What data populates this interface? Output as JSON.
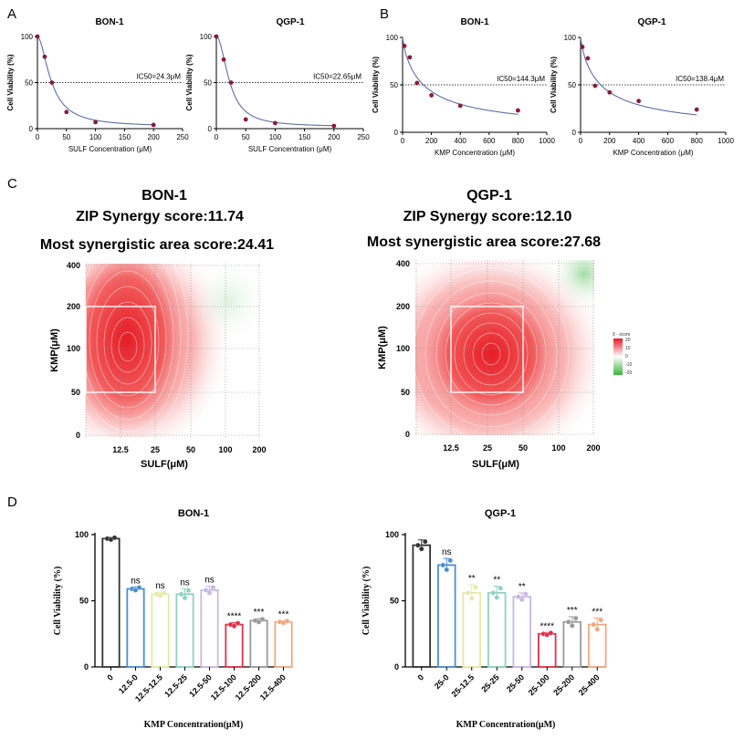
{
  "panel_labels": {
    "A": "A",
    "B": "B",
    "C": "C",
    "D": "D"
  },
  "colors": {
    "curve": "#5b6fa8",
    "point": "#8b1a3a",
    "heat": "#e8202a",
    "cool": "#3cb33c"
  },
  "chart_data": [
    {
      "type": "scatter",
      "panel": "A",
      "title": "BON-1",
      "xlabel": "SULF Concentration (μM)",
      "ylabel": "Cell Viability (%)",
      "xlim": [
        0,
        250
      ],
      "ylim": [
        0,
        100
      ],
      "xticks": [
        "0",
        "50",
        "100",
        "150",
        "200",
        "250"
      ],
      "yticks": [
        "0",
        "50",
        "100"
      ],
      "x": [
        0,
        12.5,
        25,
        50,
        100,
        200
      ],
      "y": [
        100,
        78,
        50,
        18,
        7,
        4
      ],
      "ic50_value": 24.3,
      "ic50_label": "IC50=24.3μM",
      "ic50_line_y": 50,
      "fit": {
        "model": "hill",
        "ic50": 24.3,
        "hill": 1.8,
        "bottom": 2
      },
      "series": [
        {
          "name": "fit",
          "values": []
        }
      ]
    },
    {
      "type": "scatter",
      "panel": "A",
      "title": "QGP-1",
      "xlabel": "SULF Concentration (μM)",
      "ylabel": "Cell Viability (%)",
      "xlim": [
        0,
        250
      ],
      "ylim": [
        0,
        100
      ],
      "xticks": [
        "0",
        "50",
        "100",
        "150",
        "200",
        "250"
      ],
      "yticks": [
        "0",
        "50",
        "100"
      ],
      "x": [
        0,
        12.5,
        25,
        50,
        100,
        200
      ],
      "y": [
        100,
        75,
        50,
        10,
        6,
        3
      ],
      "ic50_value": 22.65,
      "ic50_label": "IC50=22.65μM",
      "ic50_line_y": 50,
      "fit": {
        "model": "hill",
        "ic50": 22.65,
        "hill": 2.0,
        "bottom": 2
      },
      "series": [
        {
          "name": "fit",
          "values": []
        }
      ]
    },
    {
      "type": "scatter",
      "panel": "B",
      "title": "BON-1",
      "xlabel": "KMP Concentration (μM)",
      "ylabel": "Cell Viability (%)",
      "xlim": [
        0,
        1000
      ],
      "ylim": [
        0,
        100
      ],
      "xticks": [
        "0",
        "200",
        "400",
        "600",
        "800",
        "1000"
      ],
      "yticks": [
        "0",
        "50",
        "100"
      ],
      "x": [
        12.5,
        50,
        100,
        200,
        400,
        800
      ],
      "y": [
        91,
        79,
        52,
        39,
        28,
        23
      ],
      "ic50_value": 144.3,
      "ic50_label": "IC50=144.3μM",
      "ic50_line_y": 50,
      "fit": {
        "model": "hill",
        "ic50": 144.3,
        "hill": 0.85,
        "bottom": 0
      },
      "series": [
        {
          "name": "fit",
          "values": []
        }
      ]
    },
    {
      "type": "scatter",
      "panel": "B",
      "title": "QGP-1",
      "xlabel": "KMP Concentration (μM)",
      "ylabel": "Cell Viability (%)",
      "xlim": [
        0,
        1000
      ],
      "ylim": [
        0,
        100
      ],
      "xticks": [
        "0",
        "200",
        "400",
        "600",
        "800",
        "1000"
      ],
      "yticks": [
        "0",
        "50",
        "100"
      ],
      "x": [
        12.5,
        50,
        100,
        200,
        400,
        800
      ],
      "y": [
        90,
        78,
        49,
        42,
        33,
        24
      ],
      "ic50_value": 138.4,
      "ic50_label": "IC50=138.4μM",
      "ic50_line_y": 50,
      "fit": {
        "model": "hill",
        "ic50": 138.4,
        "hill": 0.85,
        "bottom": 0
      },
      "series": [
        {
          "name": "fit",
          "values": []
        }
      ]
    },
    {
      "type": "heatmap",
      "panel": "C",
      "title": "BON-1",
      "subtitle": "ZIP Synergy score:11.74",
      "annotation": "Most synergistic area score:24.41",
      "xlabel": "SULF(μM)",
      "ylabel": "KMP(μM)",
      "xticks": [
        "12.5",
        "25",
        "50",
        "100",
        "200"
      ],
      "yticks": [
        "0",
        "50",
        "100",
        "200",
        "400"
      ],
      "synergy_peak": {
        "sulf": "12.5",
        "kmp": "100"
      },
      "box": {
        "sulf": [
          "12.5",
          "25"
        ],
        "kmp": [
          "50",
          "200"
        ]
      }
    },
    {
      "type": "heatmap",
      "panel": "C",
      "title": "QGP-1",
      "subtitle": "ZIP Synergy score:12.10",
      "annotation": "Most synergistic area score:27.68",
      "xlabel": "SULF(μM)",
      "ylabel": "KMP(μM)",
      "xticks": [
        "12.5",
        "25",
        "50",
        "100",
        "200"
      ],
      "yticks": [
        "0",
        "50",
        "100",
        "200",
        "400"
      ],
      "synergy_peak": {
        "sulf": "25",
        "kmp": "100"
      },
      "box": {
        "sulf": [
          "12.5",
          "50"
        ],
        "kmp": [
          "50",
          "200"
        ]
      },
      "legend": {
        "title": "δ - score",
        "ticks": [
          "20",
          "10",
          "0",
          "-10",
          "-20"
        ]
      }
    },
    {
      "type": "bar",
      "panel": "D",
      "title": "BON-1",
      "xlabel": "KMP Concentration(μM)",
      "ylabel": "Cell Viability (%)",
      "ylim": [
        0,
        100
      ],
      "yticks": [
        "0",
        "50",
        "100"
      ],
      "categories": [
        "0",
        "12.5-0",
        "12.5-12.5",
        "12.5-25",
        "12.5-50",
        "12.5-100",
        "12.5-200",
        "12.5-400"
      ],
      "values": [
        97,
        59,
        55,
        55,
        58,
        32,
        35,
        34
      ],
      "errors": [
        1,
        1.5,
        1.5,
        4,
        3,
        1.5,
        1.5,
        1
      ],
      "significance": [
        "",
        "ns",
        "ns",
        "ns",
        "ns",
        "****",
        "***",
        "***"
      ],
      "bar_colors": [
        "#333333",
        "#4a8fd0",
        "#e3eaa6",
        "#8fd1c0",
        "#c8b8e0",
        "#e0304a",
        "#9a9a9a",
        "#f0a880"
      ]
    },
    {
      "type": "bar",
      "panel": "D",
      "title": "QGP-1",
      "xlabel": "KMP Concentration(μM)",
      "ylabel": "Cell Viability (%)",
      "ylim": [
        0,
        100
      ],
      "yticks": [
        "0",
        "50",
        "100"
      ],
      "categories": [
        "0",
        "25-0",
        "25-12.5",
        "25-25",
        "25-50",
        "25-100",
        "25-200",
        "25-400"
      ],
      "values": [
        92,
        77,
        56,
        56,
        53,
        25,
        34,
        32
      ],
      "errors": [
        4,
        5,
        6,
        5,
        3,
        1,
        4,
        5
      ],
      "significance": [
        "",
        "ns",
        "**",
        "**",
        "**",
        "****",
        "***",
        "***"
      ],
      "bar_colors": [
        "#333333",
        "#4a8fd0",
        "#e3eaa6",
        "#8fd1c0",
        "#c8b8e0",
        "#e0304a",
        "#9a9a9a",
        "#f0a880"
      ]
    }
  ]
}
